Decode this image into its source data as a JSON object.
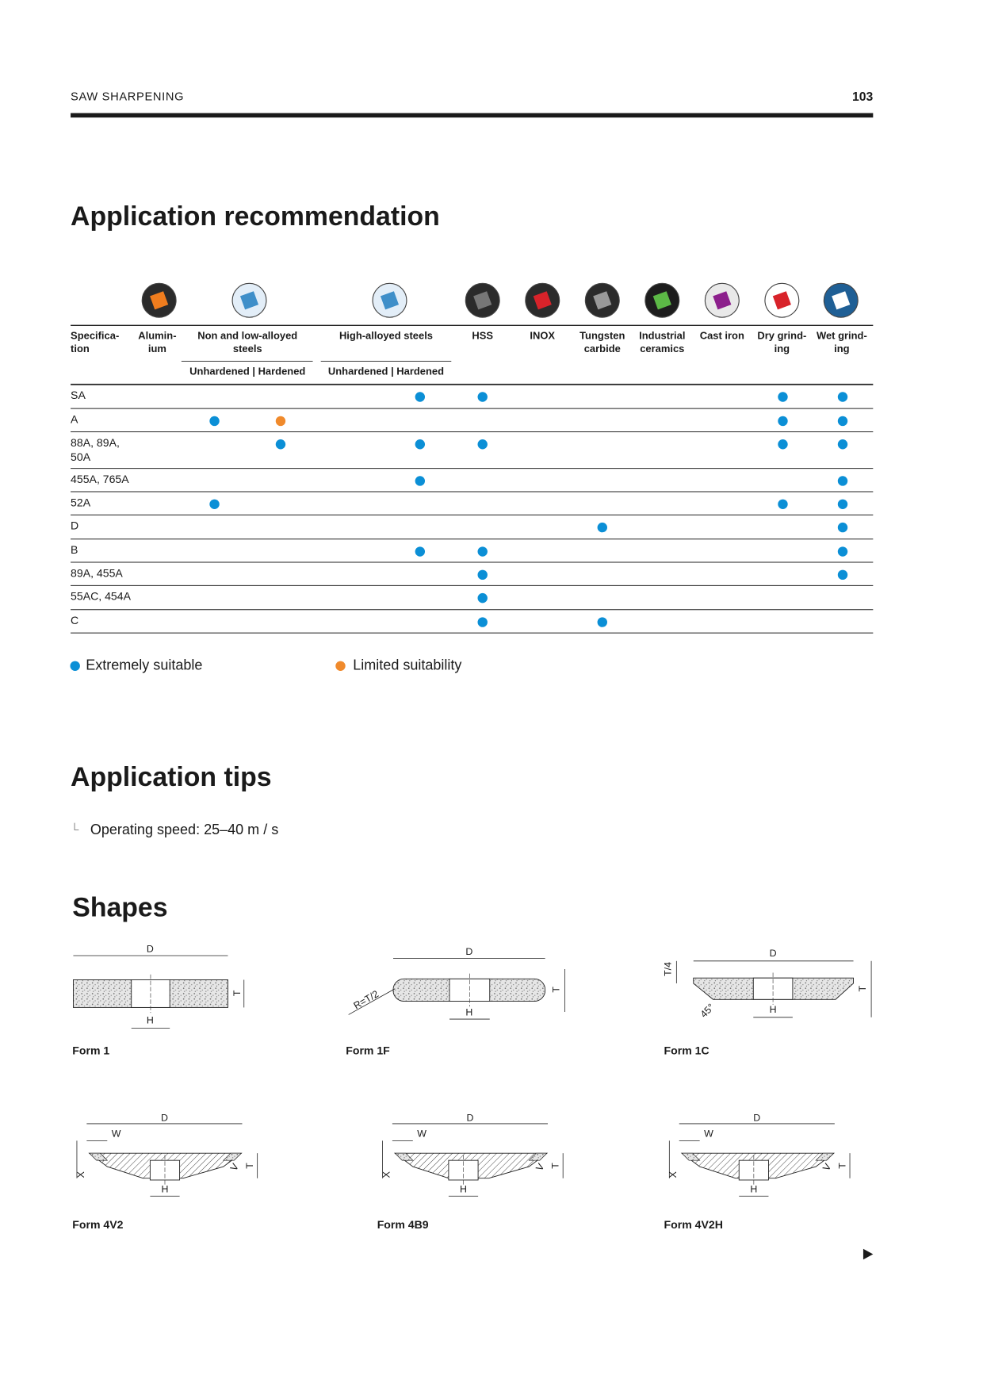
{
  "header": {
    "section": "SAW SHARPENING",
    "page": "103"
  },
  "recommendation": {
    "title": "Application recommendation",
    "columns": [
      [
        "Specifica-",
        "tion"
      ],
      [
        "Alumin-",
        "ium"
      ],
      [
        "Non and low-alloyed",
        "steels"
      ],
      [
        "High-alloyed steels"
      ],
      [
        "HSS"
      ],
      [
        "INOX"
      ],
      [
        "Tungsten",
        "carbide"
      ],
      [
        "Industrial",
        "ceramics"
      ],
      [
        "Cast iron"
      ],
      [
        "Dry grind-",
        "ing"
      ],
      [
        "Wet grind-",
        "ing"
      ]
    ],
    "subheaders": [
      "Unhardened | Hardened",
      "Unhardened | Hardened"
    ],
    "rows": [
      {
        "spec": [
          "SA"
        ],
        "marks": [
          null,
          null,
          null,
          null,
          0,
          0,
          null,
          null,
          null,
          null,
          0,
          0
        ]
      },
      {
        "spec": [
          "A"
        ],
        "marks": [
          null,
          0,
          1,
          null,
          null,
          null,
          null,
          null,
          null,
          null,
          0,
          0
        ]
      },
      {
        "spec": [
          "88A, 89A,",
          "50A"
        ],
        "marks": [
          null,
          null,
          0,
          null,
          0,
          0,
          null,
          null,
          null,
          null,
          0,
          0
        ]
      },
      {
        "spec": [
          "455A, 765A"
        ],
        "marks": [
          null,
          null,
          null,
          null,
          0,
          null,
          null,
          null,
          null,
          null,
          null,
          0
        ]
      },
      {
        "spec": [
          "52A"
        ],
        "marks": [
          null,
          0,
          null,
          null,
          null,
          null,
          null,
          null,
          null,
          null,
          0,
          0
        ]
      },
      {
        "spec": [
          "D"
        ],
        "marks": [
          null,
          null,
          null,
          null,
          null,
          null,
          null,
          0,
          null,
          null,
          null,
          0
        ]
      },
      {
        "spec": [
          "B"
        ],
        "marks": [
          null,
          null,
          null,
          null,
          0,
          0,
          null,
          null,
          null,
          null,
          null,
          0
        ]
      },
      {
        "spec": [
          "89A, 455A"
        ],
        "marks": [
          null,
          null,
          null,
          null,
          null,
          0,
          null,
          null,
          null,
          null,
          null,
          0
        ]
      },
      {
        "spec": [
          "55AC, 454A"
        ],
        "marks": [
          null,
          null,
          null,
          null,
          null,
          0,
          null,
          null,
          null,
          null,
          null,
          null
        ]
      },
      {
        "spec": [
          "C"
        ],
        "marks": [
          null,
          null,
          null,
          null,
          null,
          0,
          null,
          0,
          null,
          null,
          null,
          null
        ]
      }
    ],
    "legend": [
      {
        "label": "Extremely suitable",
        "color": "#0b8fd6"
      },
      {
        "label": "Limited suitability",
        "color": "#f08a2c"
      }
    ]
  },
  "tips": {
    "title": "Application tips",
    "items": [
      "Operating speed: 25–40 m / s"
    ]
  },
  "shapes": {
    "title": "Shapes",
    "items": [
      {
        "label": "Form 1",
        "dims": [
          "D",
          "H",
          "T"
        ]
      },
      {
        "label": "Form 1F",
        "dims": [
          "D",
          "R=T/2",
          "H",
          "T"
        ]
      },
      {
        "label": "Form 1C",
        "dims": [
          "D",
          "T/4",
          "T",
          "45°",
          "H"
        ]
      },
      {
        "label": "Form 4V2",
        "dims": [
          "D",
          "W",
          "H",
          "X",
          "T",
          "V"
        ]
      },
      {
        "label": "Form 4B9",
        "dims": [
          "D",
          "W",
          "H",
          "X",
          "T",
          "V"
        ]
      },
      {
        "label": "Form 4V2H",
        "dims": [
          "D",
          "W",
          "H",
          "X",
          "T",
          "V"
        ]
      }
    ]
  }
}
